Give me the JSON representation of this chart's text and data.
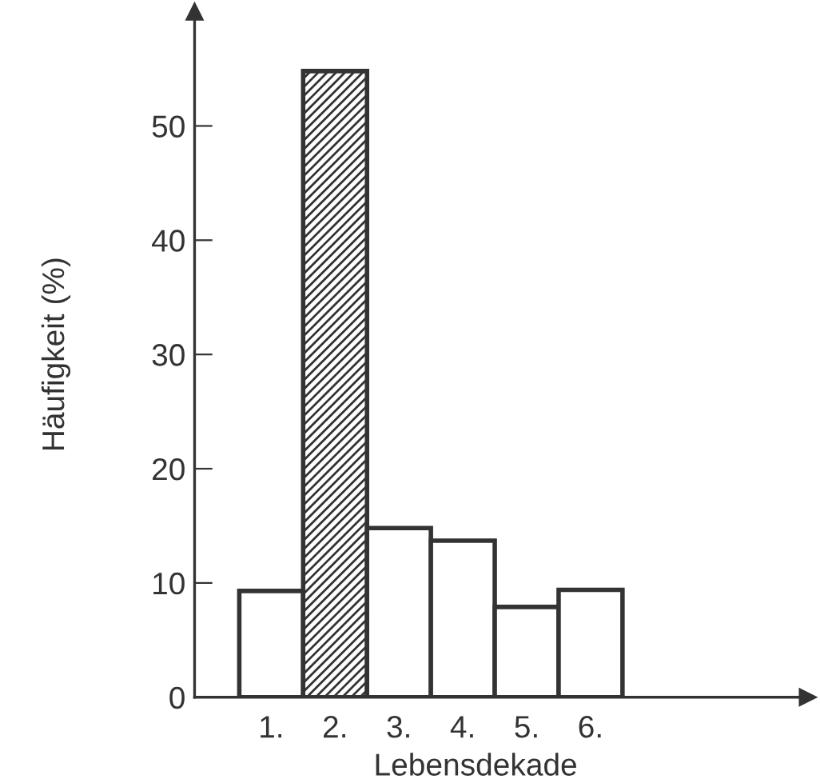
{
  "chart_data": {
    "type": "bar",
    "xlabel": "Lebensdekade",
    "ylabel": "Häufigkeit (%)",
    "categories": [
      "1.",
      "2.",
      "3.",
      "4.",
      "5.",
      "6."
    ],
    "values": [
      9.3,
      54.8,
      14.8,
      13.7,
      7.9,
      9.4
    ],
    "colors": [
      "#ffffff",
      "#333333",
      "#ffffff",
      "#ffffff",
      "#ffffff",
      "#ffffff"
    ],
    "ylim": [
      0,
      60
    ],
    "yticks": [
      0,
      10,
      20,
      30,
      40,
      50
    ],
    "grid": false,
    "legend": false
  }
}
